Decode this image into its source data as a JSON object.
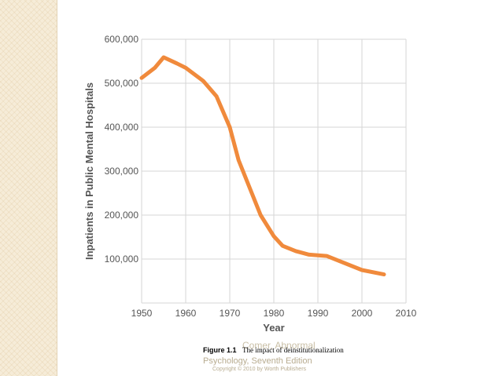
{
  "chart_data": {
    "type": "line",
    "title": "",
    "xlabel": "Year",
    "ylabel": "Inpatients in Public Mental Hospitals",
    "xlim": [
      1950,
      2010
    ],
    "ylim": [
      0,
      600000
    ],
    "x_ticks": [
      "1950",
      "1960",
      "1970",
      "1980",
      "1990",
      "2000",
      "2010"
    ],
    "y_ticks": [
      "100,000",
      "200,000",
      "300,000",
      "400,000",
      "500,000",
      "600,000"
    ],
    "grid": true,
    "legend": "none",
    "line_color": "#f08a3c",
    "series": [
      {
        "x": [
          1950,
          1953,
          1955,
          1958,
          1960,
          1964,
          1967,
          1970,
          1972,
          1975,
          1977,
          1980,
          1982,
          1985,
          1988,
          1992,
          1995,
          2000,
          2005
        ],
        "values": [
          512000,
          535000,
          559000,
          545000,
          535000,
          505000,
          470000,
          400000,
          325000,
          250000,
          200000,
          152000,
          130000,
          118000,
          110000,
          107000,
          95000,
          75000,
          65000
        ]
      }
    ]
  },
  "caption": {
    "figure_number": "Figure 1.1",
    "figure_title": "The impact of deinstitutionalization",
    "ghost_text": "Comer, Abnormal",
    "book": "Psychology, Seventh Edition",
    "copyright": "Copyright © 2010 by Worth Publishers"
  }
}
